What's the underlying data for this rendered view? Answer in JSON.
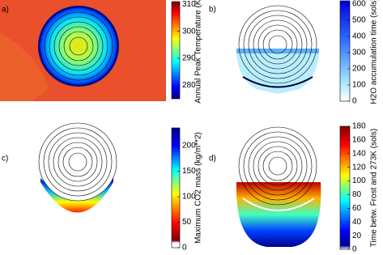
{
  "panels": [
    {
      "label": "a)",
      "colorbar": {
        "label": "Annual Peak Temperature (K)",
        "lim": [
          275,
          311
        ],
        "ticks": [
          280,
          290,
          300,
          310
        ]
      }
    },
    {
      "label": "b)",
      "colorbar": {
        "label": "H2O accumulation time (sols)",
        "lim": [
          0,
          620
        ],
        "ticks": [
          0,
          100,
          200,
          300,
          400,
          500,
          600
        ]
      }
    },
    {
      "label": "c)",
      "colorbar": {
        "label": "Maximum CO2 mass (kg/m**2)",
        "lim": [
          0,
          235
        ],
        "ticks": [
          0,
          50,
          100,
          150,
          200
        ]
      }
    },
    {
      "label": "d)",
      "colorbar": {
        "label": "Time betw. Frost and 273K (sols)",
        "lim": [
          0,
          180
        ],
        "ticks": [
          0,
          20,
          40,
          60,
          80,
          100,
          120,
          140,
          160,
          180
        ]
      }
    }
  ]
}
